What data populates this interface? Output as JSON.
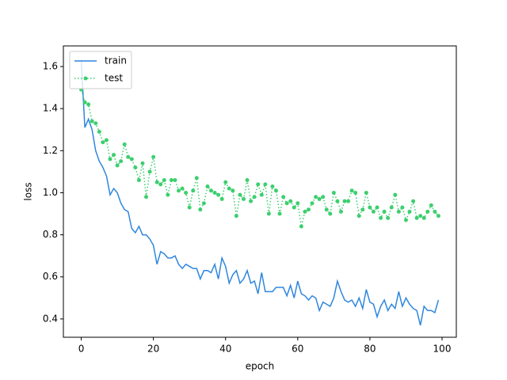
{
  "chart_data": {
    "type": "line",
    "x_label": "epoch",
    "y_label": "loss",
    "x": [
      0,
      1,
      2,
      3,
      4,
      5,
      6,
      7,
      8,
      9,
      10,
      11,
      12,
      13,
      14,
      15,
      16,
      17,
      18,
      19,
      20,
      21,
      22,
      23,
      24,
      25,
      26,
      27,
      28,
      29,
      30,
      31,
      32,
      33,
      34,
      35,
      36,
      37,
      38,
      39,
      40,
      41,
      42,
      43,
      44,
      45,
      46,
      47,
      48,
      49,
      50,
      51,
      52,
      53,
      54,
      55,
      56,
      57,
      58,
      59,
      60,
      61,
      62,
      63,
      64,
      65,
      66,
      67,
      68,
      69,
      70,
      71,
      72,
      73,
      74,
      75,
      76,
      77,
      78,
      79,
      80,
      81,
      82,
      83,
      84,
      85,
      86,
      87,
      88,
      89,
      90,
      91,
      92,
      93,
      94,
      95,
      96,
      97,
      98,
      99
    ],
    "series": [
      {
        "name": "train",
        "color": "#2e86de",
        "style": "solid",
        "marker": false,
        "values": [
          1.63,
          1.31,
          1.35,
          1.3,
          1.2,
          1.15,
          1.12,
          1.08,
          0.99,
          1.02,
          1.0,
          0.95,
          0.92,
          0.91,
          0.83,
          0.81,
          0.84,
          0.8,
          0.8,
          0.78,
          0.75,
          0.66,
          0.72,
          0.71,
          0.69,
          0.69,
          0.7,
          0.66,
          0.64,
          0.66,
          0.65,
          0.64,
          0.64,
          0.59,
          0.63,
          0.63,
          0.62,
          0.66,
          0.59,
          0.69,
          0.65,
          0.57,
          0.61,
          0.63,
          0.57,
          0.59,
          0.63,
          0.57,
          0.58,
          0.52,
          0.62,
          0.53,
          0.53,
          0.53,
          0.55,
          0.55,
          0.55,
          0.51,
          0.56,
          0.5,
          0.58,
          0.52,
          0.51,
          0.49,
          0.51,
          0.5,
          0.44,
          0.48,
          0.47,
          0.46,
          0.5,
          0.58,
          0.53,
          0.49,
          0.48,
          0.49,
          0.46,
          0.5,
          0.45,
          0.54,
          0.48,
          0.47,
          0.41,
          0.46,
          0.49,
          0.44,
          0.47,
          0.45,
          0.53,
          0.46,
          0.5,
          0.47,
          0.45,
          0.44,
          0.37,
          0.46,
          0.44,
          0.44,
          0.43,
          0.49
        ]
      },
      {
        "name": "test",
        "color": "#3ccf6e",
        "style": "dotted",
        "marker": true,
        "values": [
          1.49,
          1.43,
          1.42,
          1.34,
          1.33,
          1.29,
          1.24,
          1.25,
          1.16,
          1.18,
          1.13,
          1.15,
          1.23,
          1.17,
          1.16,
          1.12,
          1.06,
          1.14,
          0.98,
          1.1,
          1.17,
          1.05,
          1.04,
          1.06,
          0.99,
          1.06,
          1.06,
          1.01,
          1.02,
          1.0,
          0.93,
          1.01,
          1.07,
          0.92,
          0.95,
          1.03,
          1.01,
          1.0,
          0.99,
          0.97,
          1.05,
          1.02,
          1.01,
          0.89,
          0.99,
          0.97,
          1.06,
          0.96,
          0.98,
          1.04,
          0.99,
          1.04,
          0.9,
          1.03,
          1.01,
          0.9,
          0.98,
          0.95,
          0.96,
          0.93,
          0.95,
          0.84,
          0.91,
          0.92,
          0.95,
          0.98,
          0.97,
          0.98,
          0.92,
          0.9,
          1.0,
          0.96,
          0.91,
          0.96,
          0.96,
          1.01,
          1.0,
          0.89,
          0.92,
          1.0,
          0.93,
          0.91,
          0.93,
          0.88,
          0.91,
          0.88,
          0.93,
          0.99,
          0.91,
          0.93,
          0.87,
          0.91,
          0.96,
          0.88,
          0.89,
          0.88,
          0.91,
          0.94,
          0.91,
          0.89
        ]
      }
    ],
    "xlim": [
      -4.95,
      103.95
    ],
    "ylim": [
      0.313,
      1.698
    ],
    "xticks": [
      0,
      20,
      40,
      60,
      80,
      100
    ],
    "yticks": [
      {
        "value": 0.4,
        "label": "0.4"
      },
      {
        "value": 0.6,
        "label": "0.6"
      },
      {
        "value": 0.8,
        "label": "0.8"
      },
      {
        "value": 1.0,
        "label": "1.0"
      },
      {
        "value": 1.2,
        "label": "1.2"
      },
      {
        "value": 1.4,
        "label": "1.4"
      },
      {
        "value": 1.6,
        "label": "1.6"
      }
    ],
    "legend": "upper left",
    "grid": false
  }
}
